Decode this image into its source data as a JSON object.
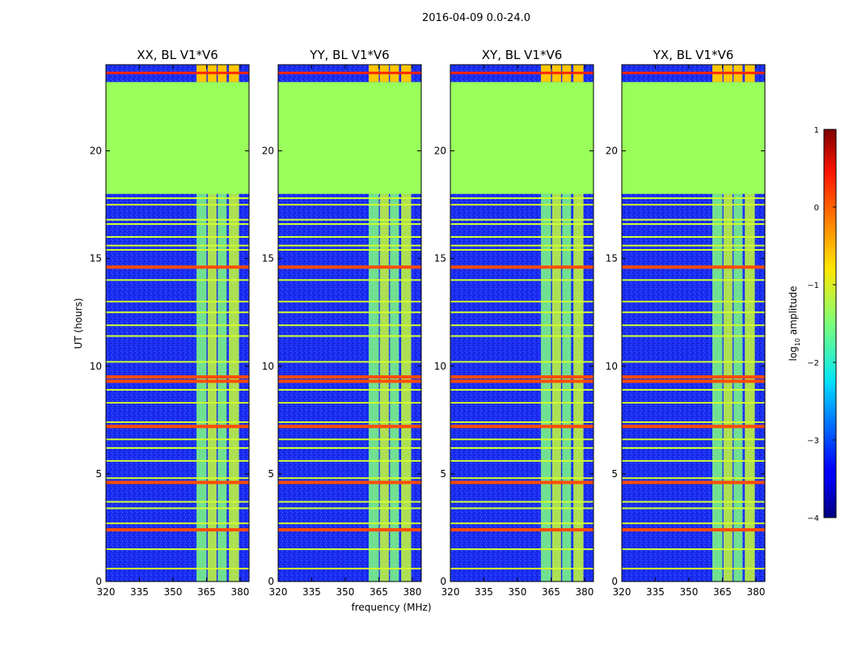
{
  "figure": {
    "suptitle": "2016-04-09 0.0-24.0",
    "xlabel": "frequency (MHz)",
    "ylabel": "UT (hours)"
  },
  "chart_data": {
    "type": "heatmap",
    "x_ticks": [
      320,
      335,
      350,
      365,
      380
    ],
    "y_ticks": [
      0,
      5,
      10,
      15,
      20
    ],
    "xlim": [
      320,
      384
    ],
    "ylim": [
      0,
      24
    ],
    "panels": [
      {
        "title": "XX, BL V1*V6"
      },
      {
        "title": "YY, BL V1*V6"
      },
      {
        "title": "XY, BL V1*V6"
      },
      {
        "title": "YX, BL V1*V6"
      }
    ],
    "flagged_ut_range": [
      18,
      23.2
    ],
    "flagged_log_value": -1.3,
    "background_log_value": -3.4,
    "band_freq_ranges": [
      [
        360.5,
        365
      ],
      [
        365.5,
        369.5
      ],
      [
        370,
        374
      ],
      [
        375,
        379.5
      ]
    ],
    "band_log_value": -1.4,
    "rfi_lines_ut": [
      0.6,
      1.5,
      2.4,
      2.7,
      3.4,
      3.7,
      4.6,
      4.8,
      5.6,
      6.2,
      6.6,
      7.2,
      7.4,
      8.3,
      8.9,
      9.3,
      9.5,
      10.2,
      11.4,
      11.9,
      12.5,
      13.0,
      14.0,
      14.6,
      15.4,
      15.6,
      16.0,
      16.6,
      16.8,
      17.5,
      17.8
    ],
    "rfi_strong_ut": [
      9.3,
      9.5,
      14.6,
      7.2,
      2.4,
      4.6
    ],
    "top_ut_range": [
      23.2,
      24
    ],
    "colorbar": {
      "label": "log10 amplitude",
      "vmin": -4,
      "vmax": 1,
      "ticks": [
        1,
        0,
        -1,
        -2,
        -3,
        -4
      ],
      "tick_labels": [
        "1",
        "0",
        "−1",
        "−2",
        "−3",
        "−4"
      ],
      "colormap": "jet"
    }
  }
}
